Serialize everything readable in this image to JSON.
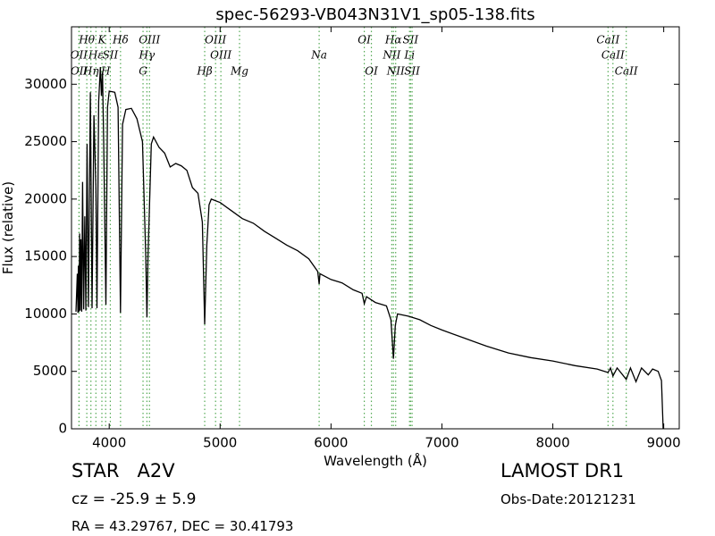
{
  "chart_data": {
    "type": "line",
    "title": "spec-56293-VB043N31V1_sp05-138.fits",
    "x_label": "Wavelength (Å)",
    "y_label": "Flux (relative)",
    "xlim": [
      3660,
      9140
    ],
    "ylim": [
      0,
      35000
    ],
    "xticks": [
      4000,
      5000,
      6000,
      7000,
      8000,
      9000
    ],
    "yticks": [
      0,
      5000,
      10000,
      15000,
      20000,
      25000,
      30000
    ],
    "x": [
      3700,
      3712,
      3718,
      3722,
      3728,
      3733,
      3738,
      3745,
      3752,
      3760,
      3770,
      3780,
      3790,
      3800,
      3812,
      3830,
      3845,
      3862,
      3880,
      3890,
      3905,
      3920,
      3930,
      3940,
      3950,
      3970,
      3985,
      4000,
      4050,
      4080,
      4102,
      4120,
      4150,
      4200,
      4250,
      4300,
      4330,
      4340,
      4350,
      4380,
      4400,
      4450,
      4500,
      4550,
      4600,
      4650,
      4700,
      4750,
      4800,
      4840,
      4861,
      4880,
      4900,
      4920,
      5000,
      5100,
      5200,
      5300,
      5400,
      5500,
      5600,
      5700,
      5800,
      5880,
      5893,
      5900,
      6000,
      6100,
      6200,
      6280,
      6300,
      6320,
      6400,
      6500,
      6540,
      6563,
      6580,
      6600,
      6700,
      6800,
      6900,
      7000,
      7200,
      7400,
      7600,
      7800,
      8000,
      8200,
      8400,
      8498,
      8520,
      8542,
      8580,
      8662,
      8700,
      8750,
      8800,
      8860,
      8900,
      8950,
      8980,
      8995
    ],
    "series": [
      {
        "name": "flux",
        "color": "#000000",
        "values": [
          10200,
          13500,
          10100,
          14200,
          10200,
          17000,
          10300,
          16500,
          10200,
          21500,
          10400,
          18500,
          10300,
          24800,
          10600,
          29300,
          10500,
          27300,
          21000,
          10500,
          28500,
          31500,
          29000,
          31000,
          25000,
          10800,
          28000,
          29400,
          29300,
          28000,
          10100,
          26500,
          27800,
          27900,
          27000,
          25000,
          15000,
          9700,
          15000,
          24800,
          25400,
          24500,
          24000,
          22800,
          23100,
          22900,
          22500,
          21000,
          20500,
          18000,
          9100,
          16000,
          19500,
          20000,
          19700,
          19000,
          18300,
          17900,
          17200,
          16600,
          16000,
          15500,
          14800,
          13700,
          12600,
          13500,
          13000,
          12700,
          12100,
          11800,
          10900,
          11500,
          11000,
          10700,
          9500,
          6100,
          9000,
          10000,
          9800,
          9500,
          9000,
          8600,
          7900,
          7200,
          6600,
          6200,
          5900,
          5500,
          5200,
          4900,
          5300,
          4600,
          5300,
          4300,
          5300,
          4100,
          5300,
          4700,
          5200,
          5000,
          4200,
          0
        ]
      }
    ],
    "line_color": "#55aa55",
    "lines": [
      [
        {
          "label": "Hθ",
          "x": 3798
        },
        {
          "label": "K",
          "x": 3934
        },
        {
          "label": "Hδ",
          "x": 4102
        },
        {
          "label": "OIII",
          "x": 4363
        },
        {
          "label": "OIII",
          "x": 4959
        },
        {
          "label": "OI",
          "x": 6300
        },
        {
          "label": "Hα",
          "x": 6563
        },
        {
          "label": "SII",
          "x": 6717
        },
        {
          "label": "CaII",
          "x": 8498
        }
      ],
      [
        {
          "label": "OII",
          "x": 3727
        },
        {
          "label": "Hε",
          "x": 3880
        },
        {
          "label": "SII",
          "x": 4010
        },
        {
          "label": "Hγ",
          "x": 4340
        },
        {
          "label": "OIII",
          "x": 5007
        },
        {
          "label": "Na",
          "x": 5893
        },
        {
          "label": "NII",
          "x": 6548
        },
        {
          "label": "Li",
          "x": 6708
        },
        {
          "label": "CaII",
          "x": 8542
        }
      ],
      [
        {
          "label": "OII",
          "x": 3729
        },
        {
          "label": "Hη",
          "x": 3835
        },
        {
          "label": "H",
          "x": 3968
        },
        {
          "label": "G",
          "x": 4305
        },
        {
          "label": "Hβ",
          "x": 4861
        },
        {
          "label": "Mg",
          "x": 5175
        },
        {
          "label": "OI",
          "x": 6364
        },
        {
          "label": "NII",
          "x": 6583
        },
        {
          "label": "SII",
          "x": 6731
        },
        {
          "label": "CaII",
          "x": 8662
        }
      ]
    ]
  },
  "footer": {
    "object": "STAR   A2V",
    "cz": "cz = -25.9 ± 5.9",
    "coords": "RA = 43.29767, DEC = 30.41793",
    "survey": "LAMOST DR1",
    "date": "Obs-Date:20121231"
  }
}
